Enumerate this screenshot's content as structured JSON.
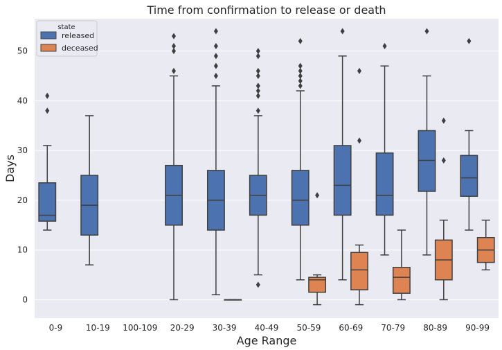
{
  "chart_data": {
    "type": "box",
    "title": "Time from confirmation to release or death",
    "xlabel": "Age Range",
    "ylabel": "Days",
    "ylim": [
      -3.7,
      56.5
    ],
    "yticks": [
      0,
      10,
      20,
      30,
      40,
      50
    ],
    "grid": true,
    "categories": [
      "0-9",
      "10-19",
      "100-109",
      "20-29",
      "30-39",
      "40-49",
      "50-59",
      "60-69",
      "70-79",
      "80-89",
      "90-99"
    ],
    "legend": {
      "title": "state",
      "position": "top-left"
    },
    "series": [
      {
        "name": "released",
        "color": "#4c72b0",
        "boxes": [
          {
            "whislo": 14,
            "q1": 15.8,
            "med": 17,
            "q3": 23.5,
            "whishi": 31,
            "fliers": [
              38,
              41
            ]
          },
          {
            "whislo": 7,
            "q1": 13,
            "med": 19,
            "q3": 25,
            "whishi": 37,
            "fliers": []
          },
          null,
          {
            "whislo": 0,
            "q1": 15,
            "med": 21,
            "q3": 27,
            "whishi": 45,
            "fliers": [
              46,
              50,
              51,
              53
            ]
          },
          {
            "whislo": 1,
            "q1": 14,
            "med": 20,
            "q3": 26,
            "whishi": 43,
            "fliers": [
              45,
              47,
              49,
              51,
              54
            ]
          },
          {
            "whislo": 5,
            "q1": 17,
            "med": 21,
            "q3": 25,
            "whishi": 37,
            "fliers": [
              3,
              38,
              41,
              42,
              43,
              45,
              46,
              49,
              50
            ]
          },
          {
            "whislo": 4,
            "q1": 15,
            "med": 20,
            "q3": 26,
            "whishi": 42,
            "fliers": [
              43,
              44,
              45,
              46,
              47,
              52
            ]
          },
          {
            "whislo": 4,
            "q1": 17,
            "med": 23,
            "q3": 31,
            "whishi": 49,
            "fliers": [
              54
            ]
          },
          {
            "whislo": 9,
            "q1": 17,
            "med": 21,
            "q3": 29.5,
            "whishi": 47,
            "fliers": [
              51
            ]
          },
          {
            "whislo": 9,
            "q1": 21.8,
            "med": 28,
            "q3": 34,
            "whishi": 45,
            "fliers": [
              54
            ]
          },
          {
            "whislo": 14,
            "q1": 20.8,
            "med": 24.5,
            "q3": 29,
            "whishi": 34,
            "fliers": [
              52
            ]
          }
        ]
      },
      {
        "name": "deceased",
        "color": "#dd8452",
        "boxes": [
          null,
          null,
          null,
          null,
          {
            "whislo": 0,
            "q1": 0,
            "med": 0,
            "q3": 0,
            "whishi": 0,
            "fliers": []
          },
          null,
          {
            "whislo": -1,
            "q1": 1.5,
            "med": 4,
            "q3": 4.5,
            "whishi": 5,
            "fliers": [
              21
            ]
          },
          {
            "whislo": -1,
            "q1": 2,
            "med": 6,
            "q3": 9.5,
            "whishi": 11,
            "fliers": [
              32,
              46
            ]
          },
          {
            "whislo": 0,
            "q1": 1.3,
            "med": 4.5,
            "q3": 6.5,
            "whishi": 14,
            "fliers": []
          },
          {
            "whislo": 0,
            "q1": 4,
            "med": 8,
            "q3": 12,
            "whishi": 16,
            "fliers": [
              28,
              36
            ]
          },
          {
            "whislo": 6,
            "q1": 7.5,
            "med": 10,
            "q3": 12.5,
            "whishi": 16,
            "fliers": []
          }
        ]
      }
    ]
  }
}
